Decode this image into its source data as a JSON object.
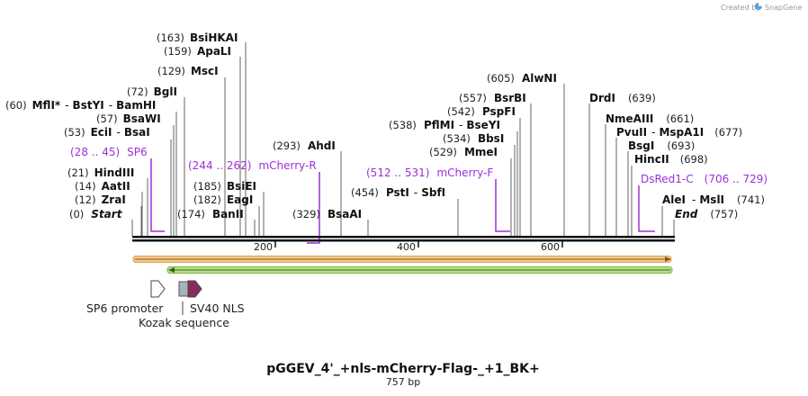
{
  "credit": {
    "prefix": "Created by",
    "brand": "SnapGene"
  },
  "title": "pGGEV_4'_+nls-mCherry-Flag-_+1_BK+",
  "subtitle": "757 bp",
  "sequence": {
    "length": 757,
    "ticks": [
      200,
      400,
      600
    ]
  },
  "ends": {
    "start_label": "Start",
    "start_pos": "(0)",
    "end_label": "End",
    "end_pos": "(757)"
  },
  "enzymes": [
    {
      "pos": "(163)",
      "name": "BsiHKAI"
    },
    {
      "pos": "(159)",
      "name": "ApaLI"
    },
    {
      "pos": "(129)",
      "name": "MscI"
    },
    {
      "pos": "(72)",
      "name": "BglI"
    },
    {
      "pos": "(60)",
      "name": "MflI",
      "star": "*",
      "extra1": "BstYI",
      "extra2": "BamHI"
    },
    {
      "pos": "(57)",
      "name": "BsaWI"
    },
    {
      "pos": "(53)",
      "name": "EciI",
      "extra1": "BsaI"
    },
    {
      "pos": "(21)",
      "name": "HindIII"
    },
    {
      "pos": "(14)",
      "name": "AatII"
    },
    {
      "pos": "(12)",
      "name": "ZraI"
    },
    {
      "pos": "(185)",
      "name": "BsiEI"
    },
    {
      "pos": "(182)",
      "name": "EagI"
    },
    {
      "pos": "(174)",
      "name": "BanII"
    },
    {
      "pos": "(293)",
      "name": "AhdI"
    },
    {
      "pos": "(329)",
      "name": "BsaAI"
    },
    {
      "pos": "(454)",
      "name": "PstI",
      "extra1": "SbfI"
    },
    {
      "pos": "(605)",
      "name": "AlwNI"
    },
    {
      "pos": "(557)",
      "name": "BsrBI"
    },
    {
      "pos": "(542)",
      "name": "PspFI"
    },
    {
      "pos": "(538)",
      "name": "PflMI",
      "extra1": "BseYI"
    },
    {
      "pos": "(534)",
      "name": "BbsI"
    },
    {
      "pos": "(529)",
      "name": "MmeI"
    },
    {
      "pos": "(639)",
      "name": "DrdI"
    },
    {
      "pos": "(661)",
      "name": "NmeAIII"
    },
    {
      "pos": "(677)",
      "name": "PvuII",
      "extra1": "MspA1I"
    },
    {
      "pos": "(693)",
      "name": "BsgI"
    },
    {
      "pos": "(698)",
      "name": "HincII"
    },
    {
      "pos": "(741)",
      "name": "AleI",
      "extra1": "MslI"
    }
  ],
  "primers": [
    {
      "name": "SP6",
      "range": "(28 .. 45)"
    },
    {
      "name": "mCherry-R",
      "range": "(244 .. 262)"
    },
    {
      "name": "mCherry-F",
      "range": "(512 .. 531)"
    },
    {
      "name": "DsRed1-C",
      "range": "(706 .. 729)"
    }
  ],
  "features": [
    {
      "name": "SP6 promoter"
    },
    {
      "name": "Kozak sequence"
    },
    {
      "name": "SV40 NLS"
    }
  ],
  "colors": {
    "primer": "#9b30d9",
    "orf_forward_fill": "#f6c98b",
    "orf_forward_edge": "#8a5a14",
    "orf_reverse_fill": "#b8e086",
    "orf_reverse_edge": "#2f6a17",
    "nls": "#8c2a5c",
    "kozak": "#a9b1bd"
  }
}
